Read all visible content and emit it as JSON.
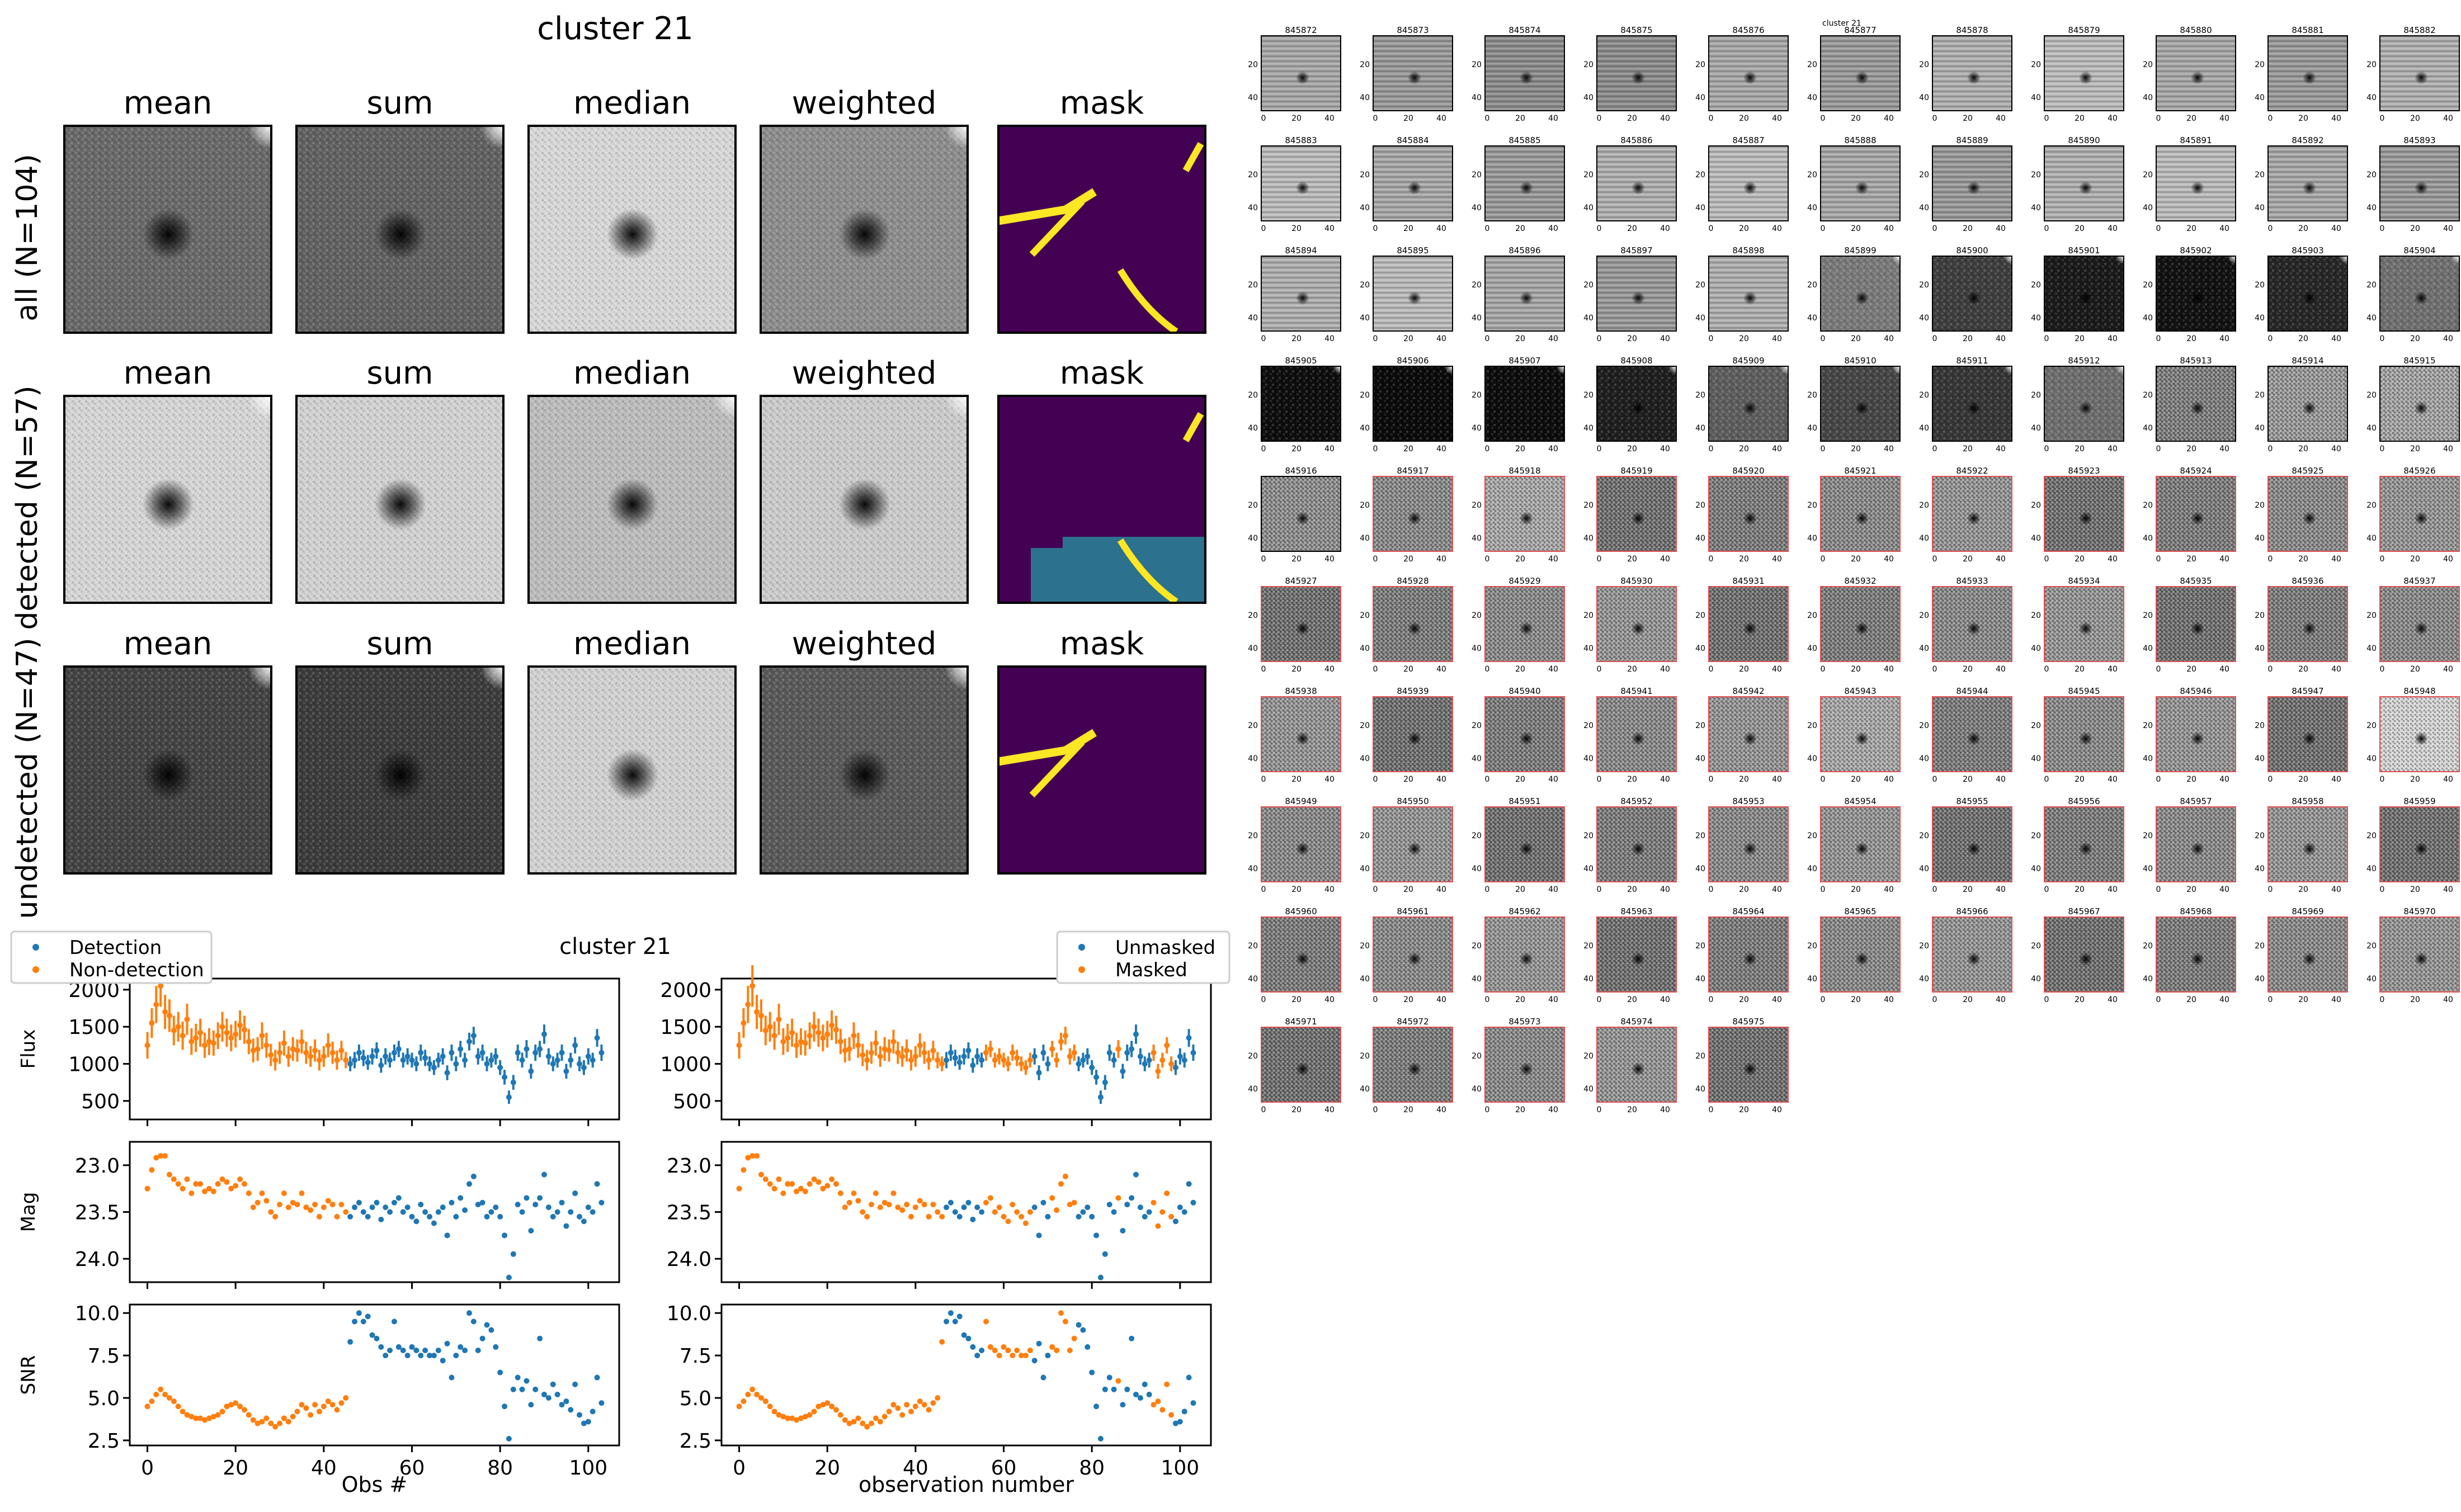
{
  "figure_title": "cluster 21",
  "chart_data": {
    "stamps": {
      "type": "image-grid",
      "title": "cluster 21",
      "columns": [
        "mean",
        "sum",
        "median",
        "weighted",
        "mask"
      ],
      "rows": [
        {
          "label": "all (N=104)",
          "tones": {
            "mean": "#6a6a6a",
            "sum": "#626262",
            "median": "#d8d8d8",
            "weighted": "#8e8e8e"
          },
          "pattern": "streaks"
        },
        {
          "label": "detected (N=57)",
          "tones": {
            "mean": "#d6d6d6",
            "sum": "#d2d2d2",
            "median": "#bdbdbd",
            "weighted": "#cccccc"
          },
          "pattern": "block"
        },
        {
          "label": "undetected (N=47)",
          "tones": {
            "mean": "#444444",
            "sum": "#3c3c3c",
            "median": "#d2d2d2",
            "weighted": "#5a5a5a"
          },
          "pattern": "streak"
        }
      ],
      "mask_colors": {
        "background": "#440154",
        "masked": "#fde725",
        "region": "#2c718e"
      }
    },
    "lightcurves": {
      "type": "scatter-errorbar",
      "title": "cluster 21",
      "x": [
        0,
        1,
        2,
        3,
        4,
        5,
        6,
        7,
        8,
        9,
        10,
        11,
        12,
        13,
        14,
        15,
        16,
        17,
        18,
        19,
        20,
        21,
        22,
        23,
        24,
        25,
        26,
        27,
        28,
        29,
        30,
        31,
        32,
        33,
        34,
        35,
        36,
        37,
        38,
        39,
        40,
        41,
        42,
        43,
        44,
        45,
        46,
        47,
        48,
        49,
        50,
        51,
        52,
        53,
        54,
        55,
        56,
        57,
        58,
        59,
        60,
        61,
        62,
        63,
        64,
        65,
        66,
        67,
        68,
        69,
        70,
        71,
        72,
        73,
        74,
        75,
        76,
        77,
        78,
        79,
        80,
        81,
        82,
        83,
        84,
        85,
        86,
        87,
        88,
        89,
        90,
        91,
        92,
        93,
        94,
        95,
        96,
        97,
        98,
        99,
        100,
        101,
        102,
        103
      ],
      "flux": [
        1250,
        1550,
        1800,
        2050,
        1700,
        1650,
        1450,
        1500,
        1380,
        1600,
        1300,
        1350,
        1420,
        1250,
        1300,
        1280,
        1380,
        1500,
        1420,
        1350,
        1400,
        1520,
        1460,
        1300,
        1180,
        1200,
        1380,
        1250,
        1120,
        1050,
        1150,
        1280,
        1100,
        1200,
        1180,
        1300,
        1150,
        1100,
        1180,
        1050,
        1100,
        1250,
        1150,
        1050,
        1180,
        1050,
        1000,
        1050,
        1150,
        1080,
        1020,
        1100,
        1180,
        980,
        1100,
        1050,
        1150,
        1200,
        1050,
        1100,
        1050,
        1000,
        1150,
        1080,
        1000,
        950,
        1050,
        1100,
        880,
        1150,
        1000,
        1200,
        1050,
        1300,
        1380,
        1100,
        1150,
        1000,
        1050,
        1100,
        950,
        820,
        550,
        750,
        1150,
        1050,
        1200,
        900,
        1150,
        1200,
        1400,
        1100,
        1000,
        1050,
        1150,
        900,
        1050,
        1250,
        1000,
        950,
        1100,
        1050,
        1350,
        1150
      ],
      "flux_err": [
        180,
        200,
        250,
        280,
        230,
        220,
        200,
        200,
        190,
        210,
        180,
        190,
        190,
        170,
        180,
        170,
        180,
        200,
        190,
        180,
        180,
        200,
        190,
        170,
        160,
        160,
        180,
        170,
        150,
        140,
        150,
        170,
        140,
        160,
        150,
        160,
        150,
        140,
        150,
        140,
        140,
        160,
        150,
        130,
        130,
        110,
        100,
        110,
        110,
        110,
        100,
        110,
        110,
        100,
        110,
        100,
        110,
        110,
        100,
        110,
        100,
        100,
        110,
        110,
        100,
        100,
        100,
        110,
        100,
        110,
        100,
        110,
        100,
        120,
        120,
        110,
        110,
        100,
        100,
        110,
        100,
        100,
        90,
        100,
        110,
        100,
        120,
        100,
        110,
        110,
        130,
        110,
        100,
        100,
        110,
        100,
        100,
        110,
        100,
        100,
        110,
        100,
        120,
        110
      ],
      "mag": [
        23.25,
        23.05,
        22.92,
        22.9,
        22.9,
        23.1,
        23.15,
        23.2,
        23.25,
        23.15,
        23.3,
        23.2,
        23.2,
        23.28,
        23.25,
        23.28,
        23.2,
        23.15,
        23.18,
        23.25,
        23.22,
        23.15,
        23.2,
        23.3,
        23.45,
        23.4,
        23.3,
        23.38,
        23.5,
        23.55,
        23.42,
        23.3,
        23.45,
        23.4,
        23.42,
        23.3,
        23.45,
        23.48,
        23.42,
        23.55,
        23.45,
        23.38,
        23.42,
        23.55,
        23.42,
        23.5,
        23.55,
        23.45,
        23.4,
        23.5,
        23.55,
        23.45,
        23.4,
        23.58,
        23.45,
        23.5,
        23.4,
        23.35,
        23.5,
        23.45,
        23.55,
        23.6,
        23.42,
        23.5,
        23.55,
        23.62,
        23.5,
        23.45,
        23.75,
        23.4,
        23.55,
        23.35,
        23.48,
        23.2,
        23.12,
        23.42,
        23.4,
        23.55,
        23.5,
        23.45,
        23.55,
        23.75,
        24.2,
        23.95,
        23.42,
        23.5,
        23.35,
        23.7,
        23.42,
        23.35,
        23.1,
        23.45,
        23.55,
        23.5,
        23.4,
        23.65,
        23.5,
        23.3,
        23.55,
        23.6,
        23.45,
        23.5,
        23.2,
        23.4
      ],
      "snr": [
        4.5,
        4.8,
        5.2,
        5.5,
        5.2,
        5.0,
        4.8,
        4.5,
        4.2,
        4.0,
        3.9,
        3.8,
        3.8,
        3.7,
        3.8,
        3.9,
        4.0,
        4.2,
        4.5,
        4.6,
        4.7,
        4.5,
        4.3,
        4.0,
        3.7,
        3.5,
        3.6,
        3.8,
        3.5,
        3.3,
        3.5,
        3.8,
        3.6,
        3.9,
        4.2,
        4.6,
        4.4,
        4.0,
        4.6,
        4.2,
        4.5,
        4.8,
        4.6,
        4.3,
        4.7,
        5.0,
        8.3,
        9.5,
        10.0,
        9.5,
        9.8,
        8.7,
        8.5,
        8.0,
        7.5,
        7.8,
        9.5,
        8.0,
        7.8,
        7.5,
        8.0,
        7.8,
        7.5,
        7.8,
        7.5,
        7.5,
        7.8,
        7.2,
        8.2,
        6.2,
        7.5,
        8.0,
        7.8,
        10.0,
        9.5,
        7.8,
        8.5,
        9.3,
        9.0,
        8.0,
        6.5,
        4.5,
        2.6,
        5.5,
        6.2,
        5.5,
        6.0,
        4.6,
        5.5,
        8.5,
        5.2,
        5.0,
        5.8,
        5.2,
        4.6,
        4.8,
        4.3,
        5.8,
        4.0,
        3.5,
        3.6,
        4.2,
        6.2,
        4.7
      ],
      "detection_split": 45,
      "mask_intervals": [
        [
          0,
          46
        ],
        [
          56,
          66
        ],
        [
          71,
          76
        ],
        [
          86,
          86
        ],
        [
          94,
          98
        ]
      ],
      "series_left": [
        "Detection",
        "Non-detection"
      ],
      "series_right": [
        "Unmasked",
        "Masked"
      ],
      "colors": {
        "detection": "#1f77b4",
        "nondetection": "#ff7f0e"
      },
      "xlabel_left": "Obs #",
      "xlabel_right": "observation number",
      "ylabels": [
        "Flux",
        "Mag",
        "SNR"
      ],
      "xlim": [
        -4,
        107
      ],
      "xticks": [
        0,
        20,
        40,
        60,
        80,
        100
      ],
      "flux_ylim": [
        250,
        2150
      ],
      "flux_ticks": [
        500,
        1000,
        1500,
        2000
      ],
      "mag_ylim": [
        24.25,
        22.75
      ],
      "mag_ticks": [
        23.0,
        23.5,
        24.0
      ],
      "mag_tick_labels": [
        "23.0",
        "23.5",
        "24.0"
      ],
      "snr_ylim": [
        2.2,
        10.5
      ],
      "snr_ticks": [
        2.5,
        5.0,
        7.5,
        10.0
      ],
      "snr_tick_labels": [
        "2.5",
        "5.0",
        "7.5",
        "10.0"
      ]
    },
    "thumbnails": {
      "type": "image-grid",
      "title": "cluster 21",
      "columns": 11,
      "ids": [
        845872,
        845873,
        845874,
        845875,
        845876,
        845877,
        845878,
        845879,
        845880,
        845881,
        845882,
        845883,
        845884,
        845885,
        845886,
        845887,
        845888,
        845889,
        845890,
        845891,
        845892,
        845893,
        845894,
        845895,
        845896,
        845897,
        845898,
        845899,
        845900,
        845901,
        845902,
        845903,
        845904,
        845905,
        845906,
        845907,
        845908,
        845909,
        845910,
        845911,
        845912,
        845913,
        845914,
        845915,
        845916,
        845917,
        845918,
        845919,
        845920,
        845921,
        845922,
        845923,
        845924,
        845925,
        845926,
        845927,
        845928,
        845929,
        845930,
        845931,
        845932,
        845933,
        845934,
        845935,
        845936,
        845937,
        845938,
        845939,
        845940,
        845941,
        845942,
        845943,
        845944,
        845945,
        845946,
        845947,
        845948,
        845949,
        845950,
        845951,
        845952,
        845953,
        845954,
        845955,
        845956,
        845957,
        845958,
        845959,
        845960,
        845961,
        845962,
        845963,
        845964,
        845965,
        845966,
        845967,
        845968,
        845969,
        845970,
        845971,
        845972,
        845973,
        845974,
        845975
      ],
      "tick_labels_x": [
        "0",
        "20",
        "40"
      ],
      "tick_labels_y": [
        "20",
        "40"
      ],
      "highlight_color": "#e05050"
    }
  }
}
